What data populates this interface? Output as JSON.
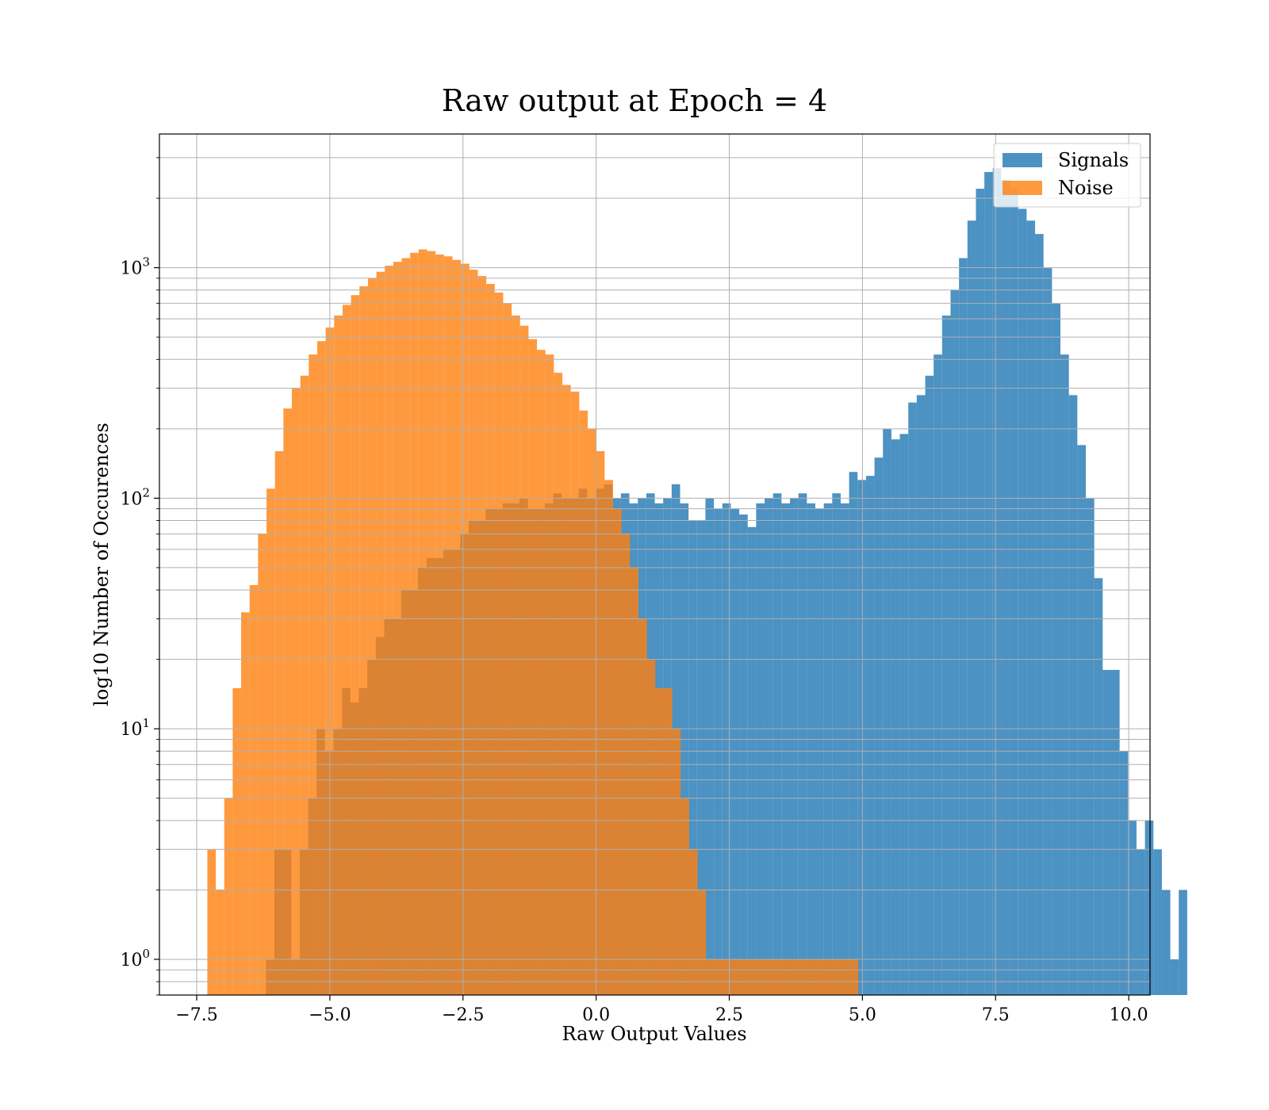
{
  "chart_data": {
    "type": "histogram",
    "title": "Raw output at Epoch = 4",
    "xlabel": "Raw Output Values",
    "ylabel": "log10 Number of Occurences",
    "yscale": "log",
    "xlim": [
      -8.2,
      10.4
    ],
    "ylim": [
      0.7,
      3800
    ],
    "xticks": [
      -7.5,
      -5.0,
      -2.5,
      0.0,
      2.5,
      5.0,
      7.5,
      10.0
    ],
    "xtick_labels": [
      "−7.5",
      "−5.0",
      "−2.5",
      "0.0",
      "2.5",
      "5.0",
      "7.5",
      "10.0"
    ],
    "yticks": [
      1,
      10,
      100,
      1000
    ],
    "ytick_bases": [
      "10",
      "10",
      "10",
      "10"
    ],
    "ytick_exponents": [
      "0",
      "1",
      "2",
      "3"
    ],
    "grid": true,
    "legend_position": "top-right",
    "series": [
      {
        "name": "Signals",
        "color": "#1f77b4",
        "opacity": 0.8,
        "x_start": -6.2,
        "bin_width": 0.1587,
        "values": [
          1,
          3,
          3,
          1,
          3,
          5,
          10,
          8,
          10,
          15,
          13,
          15,
          20,
          25,
          30,
          30,
          40,
          40,
          50,
          55,
          55,
          60,
          60,
          70,
          80,
          80,
          90,
          90,
          95,
          95,
          100,
          90,
          90,
          95,
          105,
          100,
          100,
          110,
          100,
          110,
          115,
          100,
          105,
          95,
          100,
          105,
          95,
          100,
          115,
          95,
          80,
          80,
          100,
          90,
          95,
          90,
          85,
          75,
          95,
          100,
          105,
          95,
          100,
          105,
          95,
          90,
          95,
          105,
          95,
          130,
          120,
          125,
          150,
          200,
          180,
          190,
          260,
          280,
          340,
          420,
          620,
          800,
          1100,
          1600,
          2200,
          2600,
          2700,
          2400,
          2200,
          1800,
          1600,
          1400,
          1000,
          700,
          420,
          280,
          170,
          100,
          45,
          18,
          18,
          8,
          4,
          3,
          4,
          3,
          2,
          1,
          2
        ]
      },
      {
        "name": "Noise",
        "color": "#ff7f0e",
        "opacity": 0.8,
        "x_start": -7.3,
        "bin_width": 0.1587,
        "values": [
          3,
          2,
          5,
          15,
          32,
          42,
          70,
          110,
          160,
          245,
          300,
          340,
          420,
          480,
          550,
          620,
          690,
          760,
          830,
          900,
          960,
          1020,
          1060,
          1100,
          1160,
          1200,
          1180,
          1140,
          1120,
          1080,
          1040,
          980,
          920,
          850,
          780,
          700,
          620,
          560,
          490,
          440,
          420,
          350,
          310,
          290,
          240,
          200,
          160,
          120,
          90,
          70,
          50,
          30,
          20,
          15,
          15,
          10,
          5,
          3,
          2,
          1,
          1,
          1,
          1,
          1,
          1,
          1,
          1,
          1,
          1,
          1,
          1,
          1,
          1,
          1,
          1,
          1,
          1
        ]
      }
    ]
  }
}
